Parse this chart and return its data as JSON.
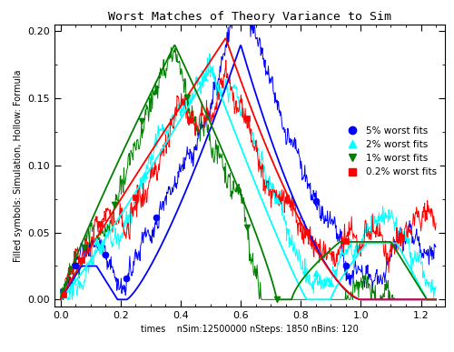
{
  "title": "Worst Matches of Theory Variance to Sim",
  "xlabel": "times    nSim:12500000 nSteps: 1850 nBins: 120",
  "ylabel": "Filled symbols: Simulation, Hollow: Formula",
  "xlim": [
    -0.02,
    1.28
  ],
  "ylim": [
    -0.005,
    0.205
  ],
  "xticks": [
    0,
    0.2,
    0.4,
    0.6,
    0.8,
    1.0,
    1.2
  ],
  "yticks": [
    0,
    0.05,
    0.1,
    0.15,
    0.2
  ],
  "background_color": "#ffffff",
  "noise_seed": 42,
  "blue_label": "5% worst fits",
  "cyan_label": "2% worst fits",
  "green_label": "1% worst fits",
  "red_label": "0.2% worst fits",
  "blue_marker_t": [
    0.05,
    0.15,
    0.22,
    0.32,
    0.62,
    0.85,
    0.95
  ],
  "cyan_marker_t": [
    0.12,
    0.28,
    0.48,
    0.72,
    0.85,
    0.9
  ],
  "green_marker_t": [
    0.08,
    0.18,
    0.27,
    0.42,
    0.62,
    0.72
  ],
  "red_marker_t": [
    0.01,
    0.07,
    0.13,
    0.25,
    0.43,
    0.62,
    0.82,
    0.95
  ]
}
